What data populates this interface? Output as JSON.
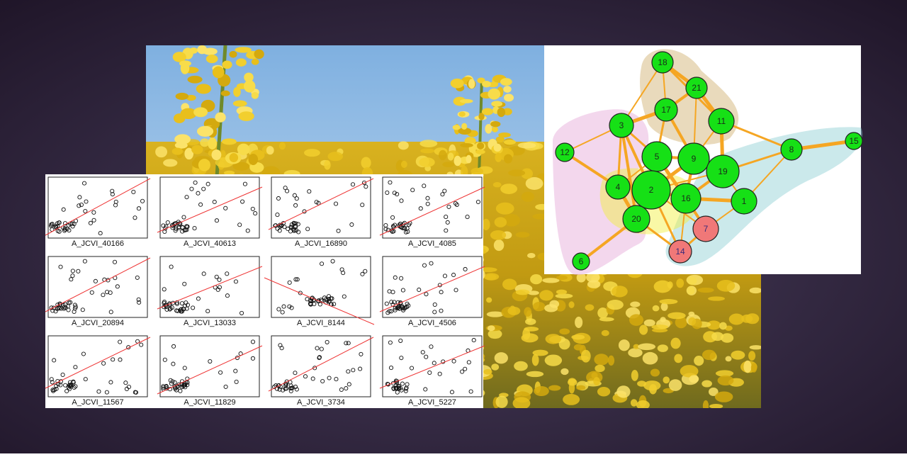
{
  "scatter_panels": {
    "labels": [
      "A_JCVI_40166",
      "A_JCVI_40613",
      "A_JCVI_16890",
      "A_JCVI_4085",
      "A_JCVI_20894",
      "A_JCVI_13033",
      "A_JCVI_8144",
      "A_JCVI_4506",
      "A_JCVI_11567",
      "A_JCVI_11829",
      "A_JCVI_3734",
      "A_JCVI_5227"
    ]
  },
  "network": {
    "nodes": [
      {
        "label": "18"
      },
      {
        "label": "21"
      },
      {
        "label": "17"
      },
      {
        "label": "11"
      },
      {
        "label": "3"
      },
      {
        "label": "12"
      },
      {
        "label": "8"
      },
      {
        "label": "15"
      },
      {
        "label": "5"
      },
      {
        "label": "9"
      },
      {
        "label": "19"
      },
      {
        "label": "4"
      },
      {
        "label": "2"
      },
      {
        "label": "16"
      },
      {
        "label": "1"
      },
      {
        "label": "20"
      },
      {
        "label": "7"
      },
      {
        "label": "14"
      },
      {
        "label": "6"
      }
    ]
  }
}
